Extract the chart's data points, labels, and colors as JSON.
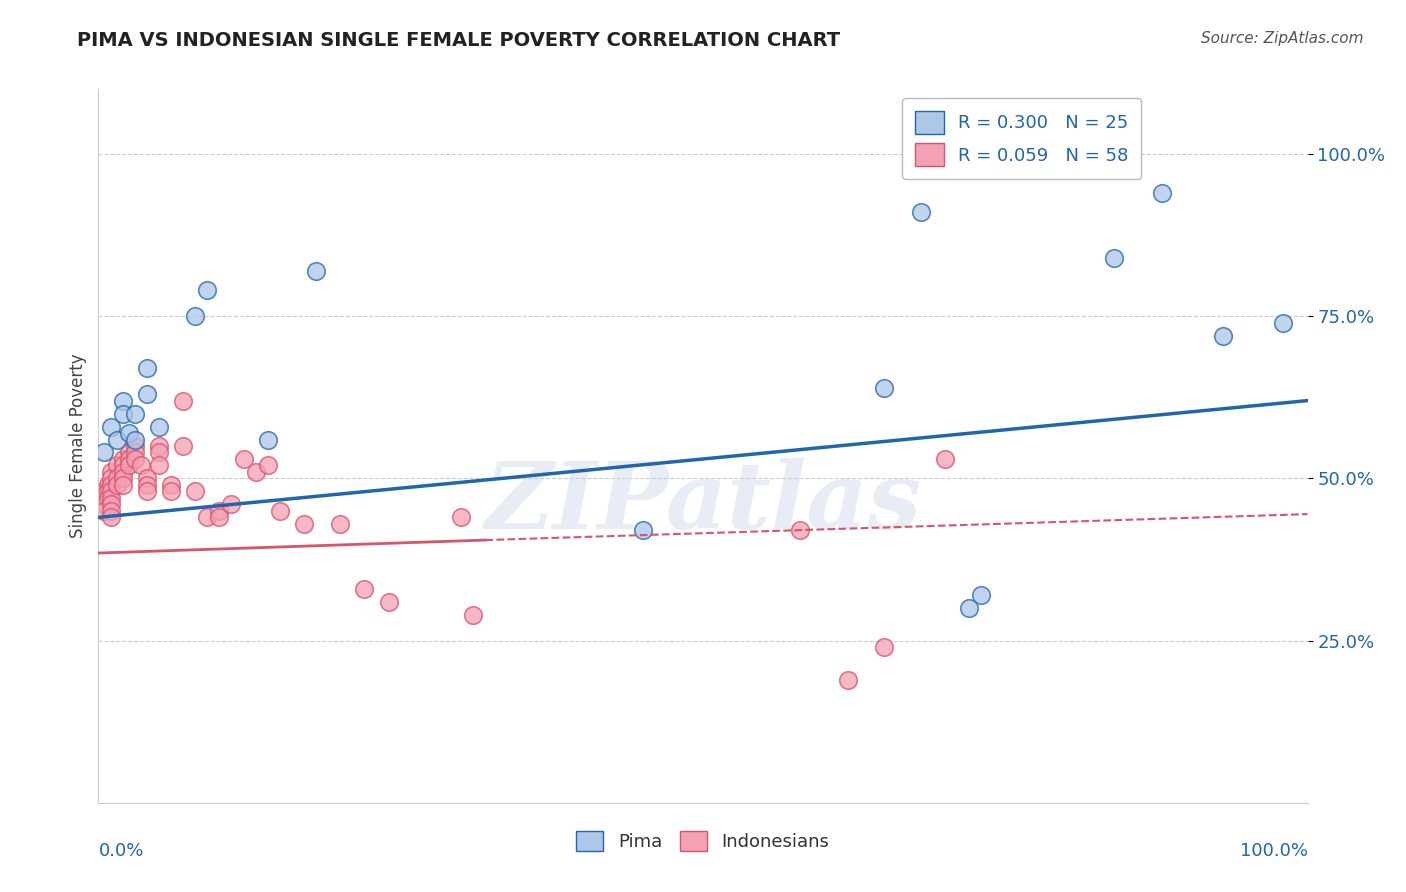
{
  "title": "PIMA VS INDONESIAN SINGLE FEMALE POVERTY CORRELATION CHART",
  "source": "Source: ZipAtlas.com",
  "ylabel": "Single Female Poverty",
  "ytick_labels": [
    "100.0%",
    "75.0%",
    "50.0%",
    "25.0%"
  ],
  "ytick_values": [
    1.0,
    0.75,
    0.5,
    0.25
  ],
  "pima_color": "#aec6e8",
  "indonesian_color": "#f4a0b5",
  "pima_line_color": "#2166ac",
  "indonesian_line_color": "#d9536a",
  "watermark_text": "ZIPatlas",
  "pima_x": [
    0.005,
    0.01,
    0.015,
    0.02,
    0.02,
    0.025,
    0.03,
    0.03,
    0.04,
    0.04,
    0.05,
    0.08,
    0.09,
    0.14,
    0.18,
    0.45,
    0.65,
    0.68,
    0.72,
    0.73,
    0.82,
    0.84,
    0.88,
    0.93,
    0.98
  ],
  "pima_y": [
    0.54,
    0.58,
    0.56,
    0.62,
    0.6,
    0.57,
    0.56,
    0.6,
    0.63,
    0.67,
    0.58,
    0.75,
    0.79,
    0.56,
    0.82,
    0.42,
    0.64,
    0.91,
    0.3,
    0.32,
    1.02,
    0.84,
    0.94,
    0.72,
    0.74
  ],
  "indonesian_x": [
    0.005,
    0.005,
    0.005,
    0.008,
    0.008,
    0.008,
    0.01,
    0.01,
    0.01,
    0.01,
    0.01,
    0.01,
    0.01,
    0.01,
    0.015,
    0.015,
    0.015,
    0.02,
    0.02,
    0.02,
    0.02,
    0.02,
    0.025,
    0.025,
    0.025,
    0.03,
    0.03,
    0.03,
    0.035,
    0.04,
    0.04,
    0.04,
    0.05,
    0.05,
    0.05,
    0.06,
    0.06,
    0.07,
    0.07,
    0.08,
    0.09,
    0.1,
    0.1,
    0.11,
    0.12,
    0.13,
    0.14,
    0.15,
    0.17,
    0.2,
    0.22,
    0.24,
    0.3,
    0.31,
    0.58,
    0.62,
    0.65,
    0.7
  ],
  "indonesian_y": [
    0.48,
    0.46,
    0.45,
    0.49,
    0.48,
    0.47,
    0.51,
    0.5,
    0.49,
    0.48,
    0.47,
    0.46,
    0.45,
    0.44,
    0.52,
    0.5,
    0.49,
    0.53,
    0.52,
    0.51,
    0.5,
    0.49,
    0.54,
    0.53,
    0.52,
    0.55,
    0.54,
    0.53,
    0.52,
    0.5,
    0.49,
    0.48,
    0.55,
    0.54,
    0.52,
    0.49,
    0.48,
    0.62,
    0.55,
    0.48,
    0.44,
    0.45,
    0.44,
    0.46,
    0.53,
    0.51,
    0.52,
    0.45,
    0.43,
    0.43,
    0.33,
    0.31,
    0.44,
    0.29,
    0.42,
    0.19,
    0.24,
    0.53
  ],
  "pima_R": 0.3,
  "pima_N": 25,
  "indonesian_R": 0.059,
  "indonesian_N": 58,
  "pima_line_x0": 0.0,
  "pima_line_x1": 1.0,
  "pima_line_y0": 0.44,
  "pima_line_y1": 0.62,
  "indo_line_solid_x0": 0.0,
  "indo_line_solid_x1": 0.32,
  "indo_line_solid_y0": 0.385,
  "indo_line_solid_y1": 0.405,
  "indo_line_dash_x0": 0.32,
  "indo_line_dash_x1": 1.0,
  "indo_line_dash_y0": 0.405,
  "indo_line_dash_y1": 0.445,
  "xlim": [
    0.0,
    1.0
  ],
  "ylim": [
    0.0,
    1.1
  ],
  "background_color": "#ffffff"
}
